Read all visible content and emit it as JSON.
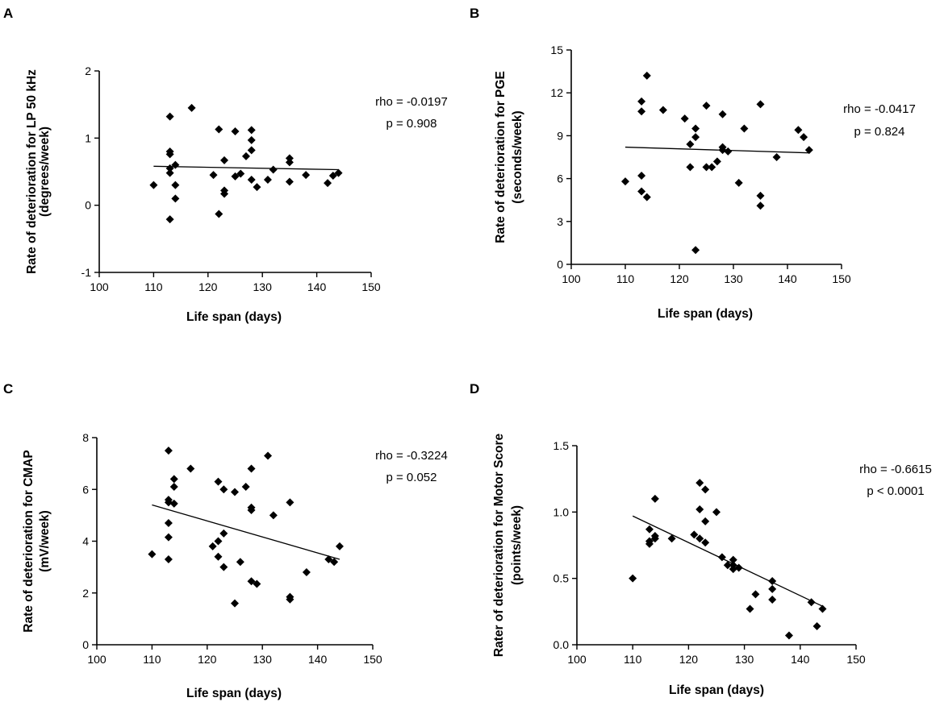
{
  "chart_data": [
    {
      "panel": "A",
      "type": "scatter",
      "xlabel": "Life span (days)",
      "ylabel": [
        "Rate of deterioration for LP 50 kHz",
        "(degrees/week)"
      ],
      "xlim": [
        100,
        150
      ],
      "ylim": [
        -1,
        2
      ],
      "xticks": [
        "100",
        "110",
        "120",
        "130",
        "140",
        "150"
      ],
      "yticks": [
        "-1",
        "0",
        "1",
        "2"
      ],
      "annotations": [
        "rho = -0.0197",
        "p = 0.908"
      ],
      "trend": {
        "x": [
          110,
          144
        ],
        "y": [
          0.58,
          0.53
        ]
      },
      "points": [
        [
          110,
          0.3
        ],
        [
          113,
          1.32
        ],
        [
          113,
          0.8
        ],
        [
          113,
          0.76
        ],
        [
          113,
          0.55
        ],
        [
          113,
          0.48
        ],
        [
          113,
          -0.21
        ],
        [
          114,
          0.6
        ],
        [
          114,
          0.3
        ],
        [
          114,
          0.1
        ],
        [
          117,
          1.45
        ],
        [
          121,
          0.45
        ],
        [
          122,
          1.13
        ],
        [
          122,
          -0.13
        ],
        [
          123,
          0.67
        ],
        [
          123,
          0.22
        ],
        [
          123,
          0.17
        ],
        [
          125,
          1.1
        ],
        [
          125,
          0.43
        ],
        [
          126,
          0.47
        ],
        [
          127,
          0.73
        ],
        [
          128,
          1.12
        ],
        [
          128,
          0.97
        ],
        [
          128,
          0.82
        ],
        [
          128,
          0.38
        ],
        [
          129,
          0.27
        ],
        [
          131,
          0.38
        ],
        [
          132,
          0.53
        ],
        [
          135,
          0.7
        ],
        [
          135,
          0.64
        ],
        [
          135,
          0.35
        ],
        [
          138,
          0.45
        ],
        [
          142,
          0.33
        ],
        [
          143,
          0.44
        ],
        [
          144,
          0.48
        ]
      ]
    },
    {
      "panel": "B",
      "type": "scatter",
      "xlabel": "Life span (days)",
      "ylabel": [
        "Rate of deterioration for PGE",
        "(seconds/week)"
      ],
      "xlim": [
        100,
        150
      ],
      "ylim": [
        0,
        15
      ],
      "xticks": [
        "100",
        "110",
        "120",
        "130",
        "140",
        "150"
      ],
      "yticks": [
        "0",
        "3",
        "6",
        "9",
        "12",
        "15"
      ],
      "annotations": [
        "rho = -0.0417",
        "p = 0.824"
      ],
      "trend": {
        "x": [
          110,
          144
        ],
        "y": [
          8.2,
          7.8
        ]
      },
      "points": [
        [
          110,
          5.8
        ],
        [
          113,
          11.4
        ],
        [
          113,
          10.7
        ],
        [
          113,
          6.2
        ],
        [
          113,
          5.1
        ],
        [
          114,
          13.2
        ],
        [
          114,
          4.7
        ],
        [
          117,
          10.8
        ],
        [
          121,
          10.2
        ],
        [
          122,
          8.4
        ],
        [
          122,
          6.8
        ],
        [
          123,
          9.5
        ],
        [
          123,
          8.9
        ],
        [
          123,
          1.0
        ],
        [
          125,
          11.1
        ],
        [
          125,
          6.8
        ],
        [
          126,
          6.8
        ],
        [
          127,
          7.2
        ],
        [
          128,
          10.5
        ],
        [
          128,
          8.2
        ],
        [
          128,
          8.0
        ],
        [
          129,
          7.9
        ],
        [
          131,
          5.7
        ],
        [
          132,
          9.5
        ],
        [
          135,
          11.2
        ],
        [
          135,
          4.8
        ],
        [
          135,
          4.1
        ],
        [
          138,
          7.5
        ],
        [
          142,
          9.4
        ],
        [
          143,
          8.9
        ],
        [
          144,
          8.0
        ]
      ]
    },
    {
      "panel": "C",
      "type": "scatter",
      "xlabel": "Life span (days)",
      "ylabel": [
        "Rate of deterioration for CMAP",
        "(mV/week)"
      ],
      "xlim": [
        100,
        150
      ],
      "ylim": [
        0,
        8
      ],
      "xticks": [
        "100",
        "110",
        "120",
        "130",
        "140",
        "150"
      ],
      "yticks": [
        "0",
        "2",
        "4",
        "6",
        "8"
      ],
      "annotations": [
        "rho = -0.3224",
        "p = 0.052"
      ],
      "trend": {
        "x": [
          110,
          144
        ],
        "y": [
          5.4,
          3.3
        ]
      },
      "points": [
        [
          110,
          3.5
        ],
        [
          113,
          7.5
        ],
        [
          113,
          5.6
        ],
        [
          113,
          5.5
        ],
        [
          113,
          4.7
        ],
        [
          113,
          4.15
        ],
        [
          113,
          3.3
        ],
        [
          114,
          6.4
        ],
        [
          114,
          6.1
        ],
        [
          114,
          5.45
        ],
        [
          117,
          6.8
        ],
        [
          121,
          3.8
        ],
        [
          122,
          6.3
        ],
        [
          122,
          4.0
        ],
        [
          122,
          3.4
        ],
        [
          123,
          6.0
        ],
        [
          123,
          4.3
        ],
        [
          123,
          3.0
        ],
        [
          125,
          5.9
        ],
        [
          125,
          1.6
        ],
        [
          126,
          3.2
        ],
        [
          127,
          6.1
        ],
        [
          128,
          6.8
        ],
        [
          128,
          5.3
        ],
        [
          128,
          5.2
        ],
        [
          128,
          2.45
        ],
        [
          129,
          2.35
        ],
        [
          131,
          7.3
        ],
        [
          132,
          5.0
        ],
        [
          135,
          5.5
        ],
        [
          135,
          1.85
        ],
        [
          135,
          1.75
        ],
        [
          138,
          2.8
        ],
        [
          142,
          3.3
        ],
        [
          143,
          3.2
        ],
        [
          144,
          3.8
        ]
      ]
    },
    {
      "panel": "D",
      "type": "scatter",
      "xlabel": "Life span (days)",
      "ylabel": [
        "Rater of deterioration for Motor Score",
        "(points/week)"
      ],
      "xlim": [
        100,
        150
      ],
      "ylim": [
        0,
        1.5
      ],
      "xticks": [
        "100",
        "110",
        "120",
        "130",
        "140",
        "150"
      ],
      "yticks": [
        "0.0",
        "0.5",
        "1.0",
        "1.5"
      ],
      "annotations": [
        "rho = -0.6615",
        "p < 0.0001"
      ],
      "trend": {
        "x": [
          110,
          144
        ],
        "y": [
          0.97,
          0.29
        ]
      },
      "points": [
        [
          110,
          0.5
        ],
        [
          113,
          0.87
        ],
        [
          113,
          0.78
        ],
        [
          113,
          0.76
        ],
        [
          114,
          1.1
        ],
        [
          114,
          0.82
        ],
        [
          114,
          0.8
        ],
        [
          117,
          0.8
        ],
        [
          121,
          0.83
        ],
        [
          122,
          1.22
        ],
        [
          122,
          1.02
        ],
        [
          122,
          0.8
        ],
        [
          123,
          1.17
        ],
        [
          123,
          0.93
        ],
        [
          123,
          0.77
        ],
        [
          125,
          1.0
        ],
        [
          126,
          0.66
        ],
        [
          127,
          0.6
        ],
        [
          128,
          0.64
        ],
        [
          128,
          0.6
        ],
        [
          128,
          0.57
        ],
        [
          129,
          0.58
        ],
        [
          131,
          0.27
        ],
        [
          132,
          0.38
        ],
        [
          135,
          0.48
        ],
        [
          135,
          0.42
        ],
        [
          135,
          0.34
        ],
        [
          138,
          0.07
        ],
        [
          142,
          0.32
        ],
        [
          143,
          0.14
        ],
        [
          144,
          0.27
        ]
      ]
    }
  ]
}
